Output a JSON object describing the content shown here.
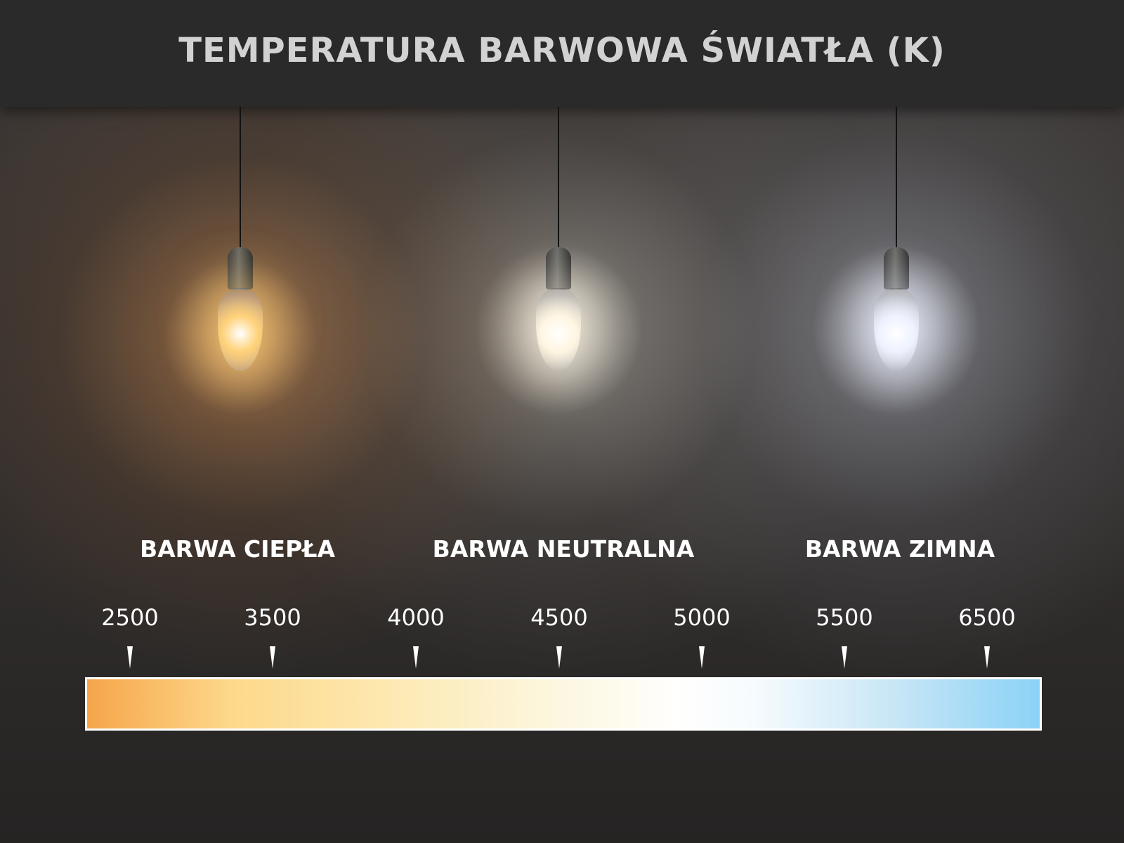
{
  "title": "TEMPERATURA BARWOWA ŚWIATŁA (K)",
  "categories": [
    {
      "label": "BARWA CIEPŁA",
      "bulb_color": "#ffd27a"
    },
    {
      "label": "BARWA NEUTRALNA",
      "bulb_color": "#fff6e2"
    },
    {
      "label": "BARWA ZIMNA",
      "bulb_color": "#eef2ff"
    }
  ],
  "scale": {
    "ticks": [
      "2500",
      "3500",
      "4000",
      "4500",
      "5000",
      "5500",
      "6500"
    ],
    "gradient_colors": [
      "#f6a54a",
      "#fdd88a",
      "#fcf6dc",
      "#ffffff",
      "#8bd2f6"
    ]
  }
}
